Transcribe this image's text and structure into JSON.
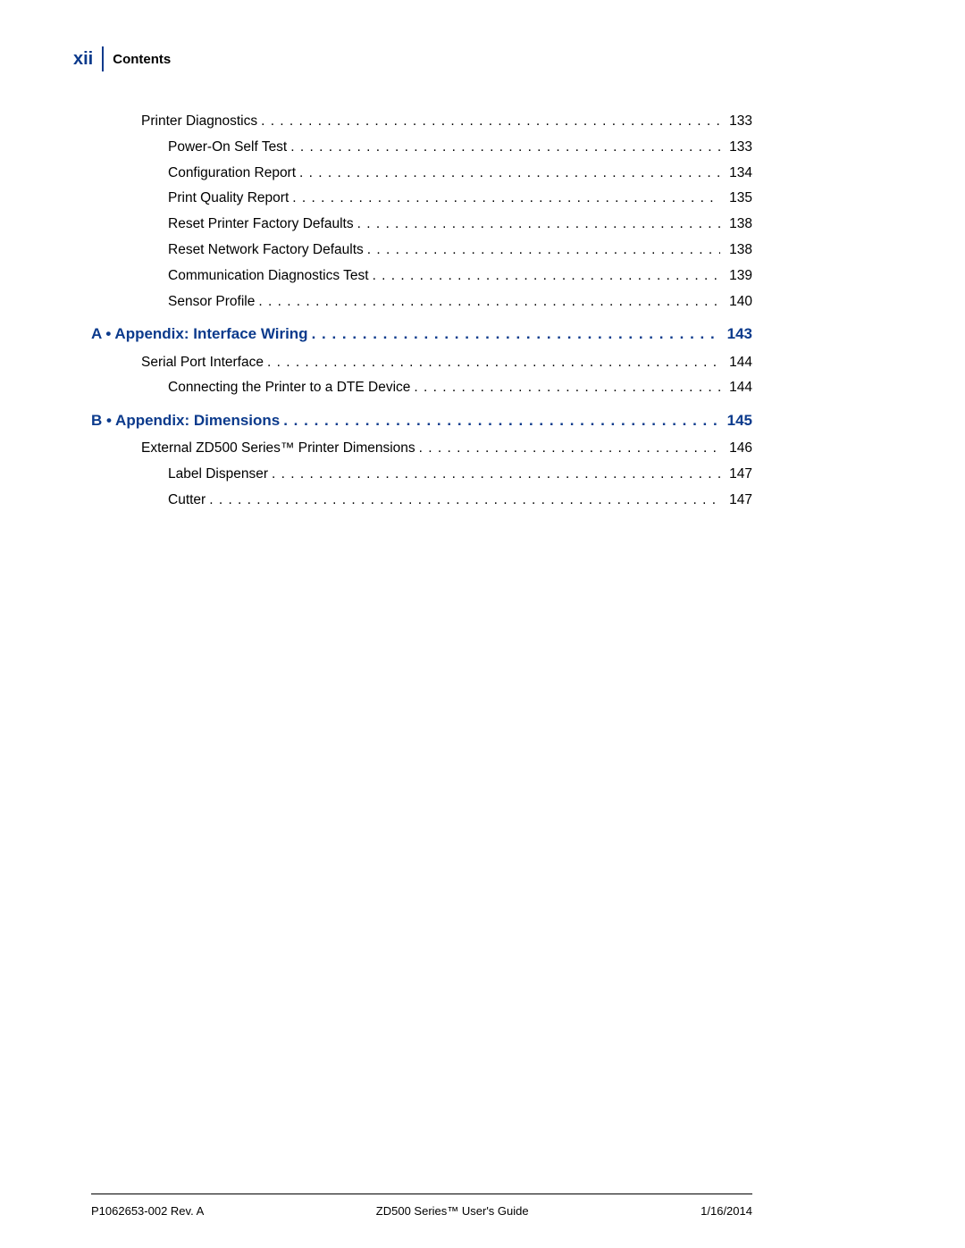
{
  "header": {
    "pageRoman": "xii",
    "title": "Contents"
  },
  "colors": {
    "accent": "#0b3a8c",
    "text": "#000000",
    "background": "#ffffff"
  },
  "typography": {
    "header_page_fontsize": 20,
    "header_title_fontsize": 15,
    "body_fontsize": 15.5,
    "section_fontsize": 17,
    "footer_fontsize": 13,
    "font_family": "Arial"
  },
  "toc": [
    {
      "type": "item",
      "indent": 1,
      "label": "Printer Diagnostics",
      "page": "133"
    },
    {
      "type": "item",
      "indent": 2,
      "label": "Power-On Self Test",
      "page": "133"
    },
    {
      "type": "item",
      "indent": 2,
      "label": "Configuration Report",
      "page": "134"
    },
    {
      "type": "item",
      "indent": 2,
      "label": "Print Quality Report",
      "page": "135"
    },
    {
      "type": "item",
      "indent": 2,
      "label": "Reset Printer Factory Defaults",
      "page": "138"
    },
    {
      "type": "item",
      "indent": 2,
      "label": "Reset Network Factory Defaults",
      "page": "138"
    },
    {
      "type": "item",
      "indent": 2,
      "label": "Communication Diagnostics Test",
      "page": "139"
    },
    {
      "type": "item",
      "indent": 2,
      "label": "Sensor Profile",
      "page": "140"
    },
    {
      "type": "section",
      "label": "A • Appendix: Interface Wiring",
      "page": "143"
    },
    {
      "type": "item",
      "indent": 1,
      "label": "Serial Port Interface",
      "page": "144"
    },
    {
      "type": "item",
      "indent": 2,
      "label": "Connecting the Printer to a DTE Device",
      "page": "144"
    },
    {
      "type": "section",
      "label": "B • Appendix: Dimensions",
      "page": "145"
    },
    {
      "type": "item",
      "indent": 1,
      "label": "External ZD500 Series™ Printer Dimensions",
      "page": "146"
    },
    {
      "type": "item",
      "indent": 2,
      "label": "Label Dispenser",
      "page": "147"
    },
    {
      "type": "item",
      "indent": 2,
      "label": "Cutter",
      "page": "147"
    }
  ],
  "footer": {
    "left": "P1062653-002 Rev. A",
    "center": "ZD500 Series™ User's Guide",
    "right": "1/16/2014"
  }
}
